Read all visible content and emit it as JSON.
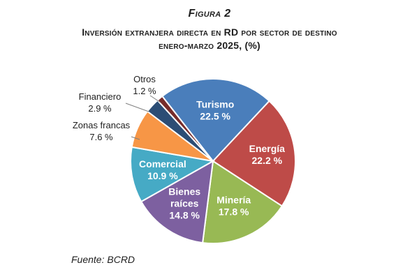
{
  "figure": {
    "label": "Figura 2",
    "title_line1": "Inversión extranjera directa en RD por sector de destino",
    "title_line2": "enero-marzo 2025, (%)",
    "source": "Fuente: BCRD"
  },
  "chart_data": {
    "type": "pie",
    "title": "Inversión extranjera directa en RD por sector de destino enero-marzo 2025, (%)",
    "unit": "%",
    "slices": [
      {
        "name": "Turismo",
        "value": 22.5,
        "label_lines": [
          "Turismo"
        ],
        "value_text": "22.5 %",
        "color": "#4a7ebb",
        "label_position": "inside"
      },
      {
        "name": "Energía",
        "value": 22.2,
        "label_lines": [
          "Energía"
        ],
        "value_text": "22.2 %",
        "color": "#be4b48",
        "label_position": "inside"
      },
      {
        "name": "Minería",
        "value": 17.8,
        "label_lines": [
          "Minería"
        ],
        "value_text": "17.8 %",
        "color": "#98b954",
        "label_position": "inside"
      },
      {
        "name": "Bienes raíces",
        "value": 14.8,
        "label_lines": [
          "Bienes",
          "raíces"
        ],
        "value_text": "14.8 %",
        "color": "#7d60a0",
        "label_position": "inside"
      },
      {
        "name": "Comercial",
        "value": 10.9,
        "label_lines": [
          "Comercial"
        ],
        "value_text": "10.9 %",
        "color": "#46aac5",
        "label_position": "inside"
      },
      {
        "name": "Zonas francas",
        "value": 7.6,
        "label_lines": [
          "Zonas francas"
        ],
        "value_text": "7.6 %",
        "color": "#f79646",
        "label_position": "outside"
      },
      {
        "name": "Financiero",
        "value": 2.9,
        "label_lines": [
          "Financiero"
        ],
        "value_text": "2.9 %",
        "color": "#2c4d75",
        "label_position": "outside"
      },
      {
        "name": "Otros",
        "value": 1.2,
        "label_lines": [
          "Otros"
        ],
        "value_text": "1.2 %",
        "color": "#772c2a",
        "label_position": "outside"
      }
    ],
    "legend": "none"
  }
}
